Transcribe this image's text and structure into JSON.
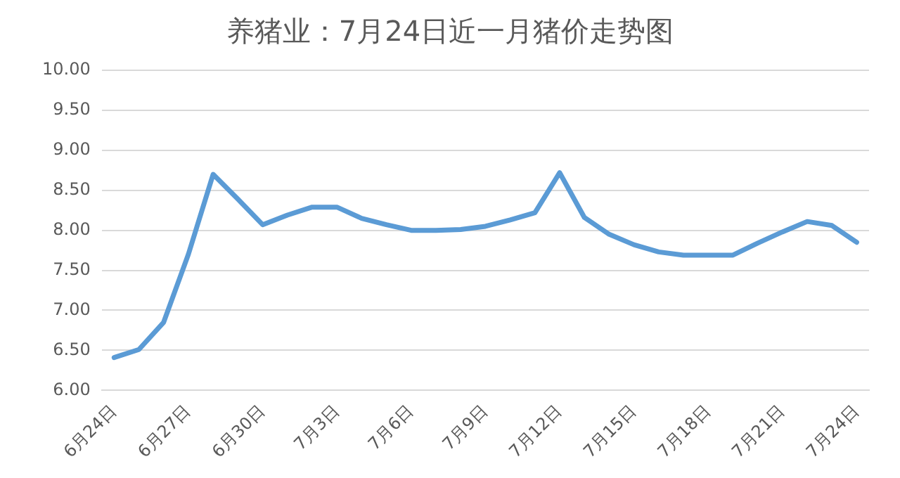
{
  "chart_data": {
    "type": "line",
    "title": "养猪业：7月24日近一月猪价走势图",
    "categories": [
      "6月24日",
      null,
      null,
      "6月27日",
      null,
      null,
      "6月30日",
      null,
      null,
      "7月3日",
      null,
      null,
      "7月6日",
      null,
      null,
      "7月9日",
      null,
      null,
      "7月12日",
      null,
      null,
      "7月15日",
      null,
      null,
      "7月18日",
      null,
      null,
      "7月21日",
      null,
      null,
      "7月24日"
    ],
    "series": [
      {
        "color": "#5b9bd5",
        "values": [
          6.41,
          6.51,
          6.85,
          7.7,
          8.7,
          8.39,
          8.07,
          8.19,
          8.29,
          8.29,
          8.15,
          8.07,
          8.0,
          8.0,
          8.01,
          8.05,
          8.13,
          8.22,
          8.72,
          8.16,
          7.95,
          7.82,
          7.73,
          7.69,
          7.69,
          7.69,
          7.84,
          7.98,
          8.11,
          8.06,
          7.85
        ]
      }
    ],
    "ylim": [
      6,
      10
    ],
    "yticks": [
      {
        "value": 6,
        "label": "6.00"
      },
      {
        "value": 6.5,
        "label": "6.50"
      },
      {
        "value": 7,
        "label": "7.00"
      },
      {
        "value": 7.5,
        "label": "7.50"
      },
      {
        "value": 8,
        "label": "8.00"
      },
      {
        "value": 8.5,
        "label": "8.50"
      },
      {
        "value": 9,
        "label": "9.00"
      },
      {
        "value": 9.5,
        "label": "9.50"
      },
      {
        "value": 10,
        "label": "10.00"
      }
    ],
    "grid": "y",
    "legend": false,
    "marker": "none",
    "line_style": "solid"
  }
}
